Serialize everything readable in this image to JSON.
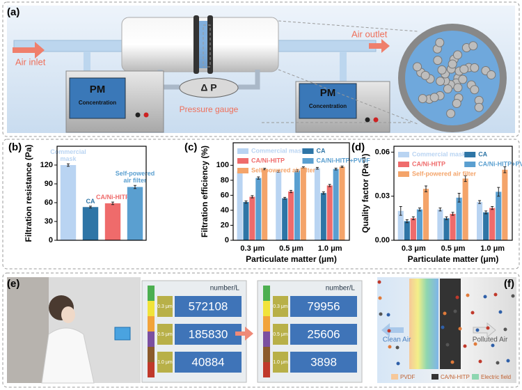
{
  "chart_data": [
    {
      "type": "bar",
      "panel_label": "(b)",
      "ylabel": "Filtration resistance (Pa)",
      "categories": [
        "Commercial mask",
        "CA",
        "CA/Ni-HITP",
        "Self-powered air filter"
      ],
      "values": [
        120,
        53,
        59,
        85
      ],
      "errors": [
        2,
        1.5,
        2,
        2.5
      ],
      "colors": [
        "#b9d4f2",
        "#2e75a6",
        "#ef6b6b",
        "#5a9fd0"
      ],
      "ylim": [
        0,
        150
      ],
      "yticks": [
        0,
        30,
        60,
        90,
        120
      ]
    },
    {
      "type": "bar",
      "panel_label": "(c)",
      "ylabel": "Filtration efficiency (%)",
      "xlabel": "Particulate matter (μm)",
      "categories": [
        "0.3 μm",
        "0.5 μm",
        "1.0 μm"
      ],
      "legend": true,
      "series": [
        {
          "name": "Commercial mask",
          "color": "#b9d4f2",
          "values": [
            92,
            92,
            96
          ],
          "errors": [
            1.5,
            1.2,
            1.2
          ]
        },
        {
          "name": "CA",
          "color": "#2e75a6",
          "values": [
            51,
            56,
            63
          ],
          "errors": [
            1.5,
            1.2,
            1.5
          ]
        },
        {
          "name": "CA/Ni-HITP",
          "color": "#ef6b6b",
          "values": [
            58,
            65,
            73
          ],
          "errors": [
            1.5,
            1.5,
            1.5
          ]
        },
        {
          "name": "CA/Ni-HITP+PVDF",
          "color": "#5a9fd0",
          "values": [
            83,
            93,
            95
          ],
          "errors": [
            1.5,
            1.2,
            1.2
          ]
        },
        {
          "name": "Self-powered air filter",
          "color": "#f4a46a",
          "values": [
            95,
            97,
            98
          ],
          "errors": [
            1,
            1,
            1
          ]
        }
      ],
      "ylim": [
        0,
        130
      ],
      "yticks": [
        0,
        20,
        40,
        60,
        80,
        100
      ]
    },
    {
      "type": "bar",
      "panel_label": "(d)",
      "ylabel": "Quality factor (Pa⁻¹)",
      "xlabel": "Particulate matter (μm)",
      "categories": [
        "0.3 μm",
        "0.5 μm",
        "1.0 μm"
      ],
      "legend": true,
      "series": [
        {
          "name": "Commercial mask",
          "color": "#b9d4f2",
          "values": [
            0.02,
            0.021,
            0.026
          ],
          "errors": [
            0.003,
            0.001,
            0.001
          ]
        },
        {
          "name": "CA",
          "color": "#2e75a6",
          "values": [
            0.013,
            0.015,
            0.019
          ],
          "errors": [
            0.001,
            0.001,
            0.001
          ]
        },
        {
          "name": "CA/Ni-HITP",
          "color": "#ef6b6b",
          "values": [
            0.015,
            0.018,
            0.022
          ],
          "errors": [
            0.001,
            0.001,
            0.001
          ]
        },
        {
          "name": "CA/Ni-HITP+PVDF",
          "color": "#5a9fd0",
          "values": [
            0.021,
            0.029,
            0.033
          ],
          "errors": [
            0.001,
            0.003,
            0.003
          ]
        },
        {
          "name": "Self-powered air filter",
          "color": "#f4a46a",
          "values": [
            0.035,
            0.042,
            0.048
          ],
          "errors": [
            0.002,
            0.002,
            0.002
          ]
        }
      ],
      "ylim": [
        0,
        0.064
      ],
      "yticks": [
        {
          "value": 0,
          "label": "0.00"
        },
        {
          "value": 0.03,
          "label": "0.03"
        },
        {
          "value": 0.06,
          "label": "0.06"
        }
      ]
    }
  ],
  "panel_a": {
    "label": "(a)",
    "air_inlet": "Air inlet",
    "air_outlet": "Air outlet",
    "pm_left": "PM",
    "conc_left": "Concentration",
    "pm_right": "PM",
    "conc_right": "Concentration",
    "delta_p": "Δ P",
    "pressure_gauge": "Pressure gauge"
  },
  "panel_e": {
    "label": "(e)",
    "before": {
      "header": "number/L",
      "rows": [
        {
          "size": "0.3 μm",
          "count": 572108
        },
        {
          "size": "0.5 μm",
          "count": 185830
        },
        {
          "size": "1.0 μm",
          "count": 40884
        }
      ]
    },
    "after": {
      "header": "number/L",
      "rows": [
        {
          "size": "0.3 μm",
          "count": 79956
        },
        {
          "size": "0.5 μm",
          "count": 25606
        },
        {
          "size": "1.0 μm",
          "count": 3898
        }
      ]
    }
  },
  "panel_f": {
    "label": "(f)",
    "clean_air": "Clean Air",
    "polluted_air": "Polluted Air",
    "legend": [
      "PVDF",
      "CA/Ni-HITP",
      "Electric field"
    ]
  }
}
